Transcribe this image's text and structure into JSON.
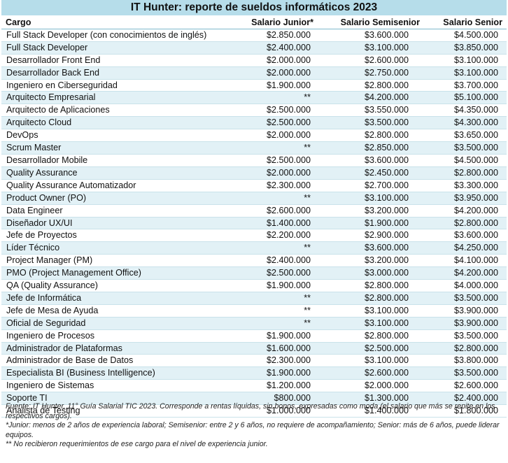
{
  "title": "IT Hunter: reporte de sueldos informáticos 2023",
  "columns": [
    "Cargo",
    "Salario Junior*",
    "Salario Semisenior",
    "Salario Senior"
  ],
  "rows": [
    [
      "Full Stack Developer (con conocimientos de inglés)",
      "$2.850.000",
      "$3.600.000",
      "$4.500.000"
    ],
    [
      "Full Stack Developer",
      "$2.400.000",
      "$3.100.000",
      "$3.850.000"
    ],
    [
      "Desarrollador Front End",
      "$2.000.000",
      "$2.600.000",
      "$3.100.000"
    ],
    [
      "Desarrollador Back End",
      "$2.000.000",
      "$2.750.000",
      "$3.100.000"
    ],
    [
      "Ingeniero en Ciberseguridad",
      "$1.900.000",
      "$2.800.000",
      "$3.700.000"
    ],
    [
      "Arquitecto Empresarial",
      "**",
      "$4.200.000",
      "$5.100.000"
    ],
    [
      "Arquitecto de Aplicaciones",
      "$2.500.000",
      "$3.550.000",
      "$4.350.000"
    ],
    [
      "Arquitecto Cloud",
      "$2.500.000",
      "$3.500.000",
      "$4.300.000"
    ],
    [
      "DevOps",
      "$2.000.000",
      "$2.800.000",
      "$3.650.000"
    ],
    [
      "Scrum Master",
      "**",
      "$2.850.000",
      "$3.500.000"
    ],
    [
      "Desarrollador Mobile",
      "$2.500.000",
      "$3.600.000",
      "$4.500.000"
    ],
    [
      "Quality Assurance",
      "$2.000.000",
      "$2.450.000",
      "$2.800.000"
    ],
    [
      "Quality Assurance Automatizador",
      "$2.300.000",
      "$2.700.000",
      "$3.300.000"
    ],
    [
      "Product Owner (PO)",
      "**",
      "$3.100.000",
      "$3.950.000"
    ],
    [
      "Data Engineer",
      "$2.600.000",
      "$3.200.000",
      "$4.200.000"
    ],
    [
      "Diseñador UX/UI",
      "$1.400.000",
      "$1.900.000",
      "$2.800.000"
    ],
    [
      "Jefe de Proyectos",
      "$2.200.000",
      "$2.900.000",
      "$3.600.000"
    ],
    [
      "Líder Técnico",
      "**",
      "$3.600.000",
      "$4.250.000"
    ],
    [
      "Project Manager (PM)",
      "$2.400.000",
      "$3.200.000",
      "$4.100.000"
    ],
    [
      "PMO (Project Management Office)",
      "$2.500.000",
      "$3.000.000",
      "$4.200.000"
    ],
    [
      "QA (Quality Assurance)",
      "$1.900.000",
      "$2.800.000",
      "$4.000.000"
    ],
    [
      "Jefe de Informática",
      "**",
      "$2.800.000",
      "$3.500.000"
    ],
    [
      "Jefe de Mesa de Ayuda",
      "**",
      "$3.100.000",
      "$3.900.000"
    ],
    [
      "Oficial de Seguridad",
      "**",
      "$3.100.000",
      "$3.900.000"
    ],
    [
      "Ingeniero de Procesos",
      "$1.900.000",
      "$2.800.000",
      "$3.500.000"
    ],
    [
      "Administrador de Plataformas",
      "$1.600.000",
      "$2.500.000",
      "$2.800.000"
    ],
    [
      "Administrador de Base de Datos",
      "$2.300.000",
      "$3.100.000",
      "$3.800.000"
    ],
    [
      "Especialista BI (Business Intelligence)",
      "$1.900.000",
      "$2.600.000",
      "$3.500.000"
    ],
    [
      "Ingeniero de Sistemas",
      "$1.200.000",
      "$2.000.000",
      "$2.600.000"
    ],
    [
      "Soporte TI",
      "$800.000",
      "$1.300.000",
      "$2.400.000"
    ],
    [
      "Analista de Testing",
      "$1.000.000",
      "$1.400.000",
      "$1.800.000"
    ]
  ],
  "notes": {
    "source": "Fuente: IT Hunter, 11° Guía Salarial TIC 2023. Corresponde a rentas líquidas, sin bonos, expresadas como moda (el salario que más se repite en los respectivos cargos).",
    "levels": "*Junior: menos de 2 años de experiencia laboral; Semisenior: entre 2 y 6 años, no requiere de acompañamiento; Senior: más de 6 años, puede liderar equipos.",
    "no_data": "** No recibieron requerimientos de ese cargo para el nivel de experiencia junior."
  }
}
